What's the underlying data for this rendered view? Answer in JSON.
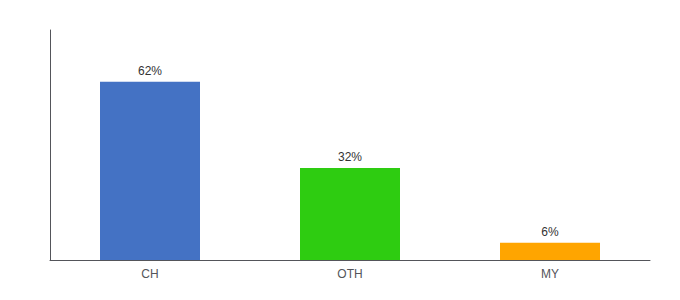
{
  "chart_data": {
    "type": "bar",
    "categories": [
      "CH",
      "OTH",
      "MY"
    ],
    "values": [
      62,
      32,
      6
    ],
    "value_labels": [
      "62%",
      "32%",
      "6%"
    ],
    "colors": [
      "#4472C4",
      "#2ECC11",
      "#FFA500"
    ],
    "ylim": [
      0,
      80
    ],
    "data_labels": true,
    "tick_labels": "x",
    "grid": false
  }
}
